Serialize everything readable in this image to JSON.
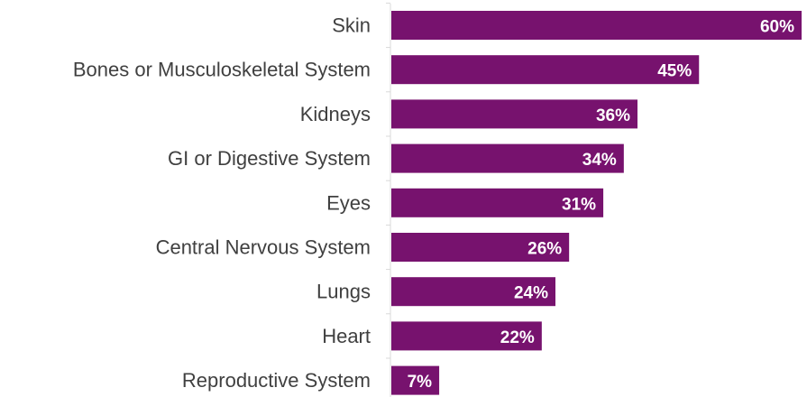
{
  "chart_data": {
    "type": "bar",
    "orientation": "horizontal",
    "categories": [
      "Skin",
      "Bones or Musculoskeletal System",
      "Kidneys",
      "GI or Digestive System",
      "Eyes",
      "Central Nervous System",
      "Lungs",
      "Heart",
      "Reproductive System"
    ],
    "values": [
      60,
      45,
      36,
      34,
      31,
      26,
      24,
      22,
      7
    ],
    "value_labels": [
      "60%",
      "45%",
      "36%",
      "34%",
      "31%",
      "26%",
      "24%",
      "22%",
      "7%"
    ],
    "xlim": [
      0,
      60
    ],
    "bar_color": "#77126e",
    "label_color": "#ffffff",
    "grid": false,
    "legend": "none"
  }
}
